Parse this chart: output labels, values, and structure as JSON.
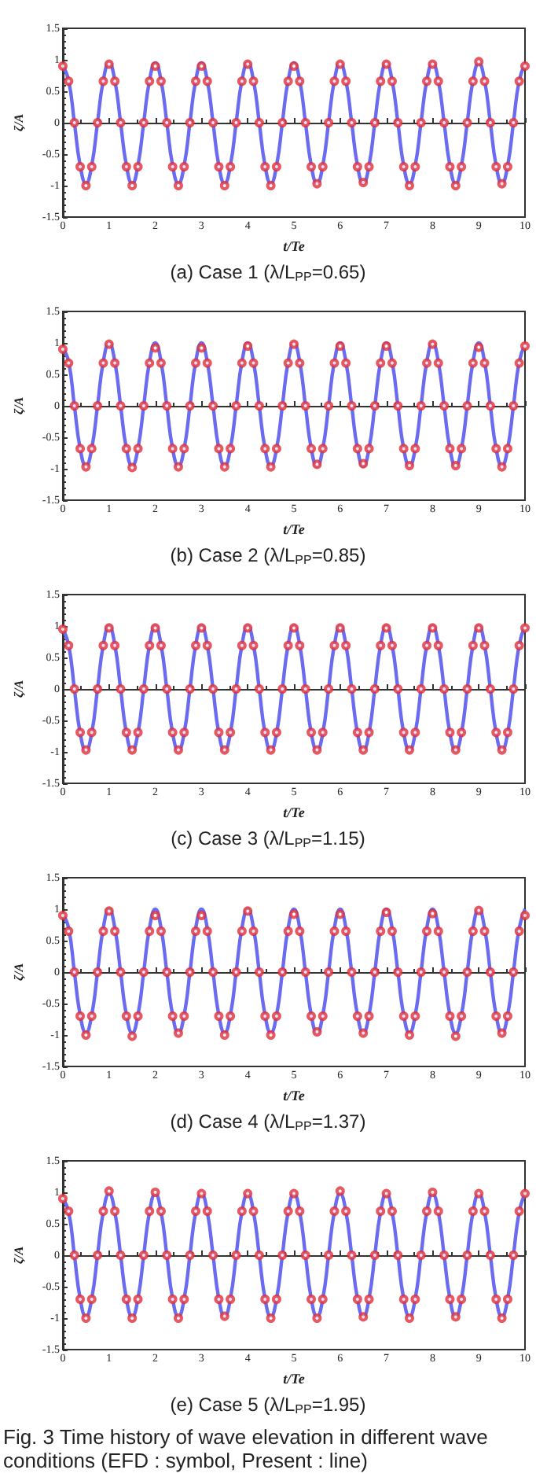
{
  "chart_data": [
    {
      "type": "line",
      "title": "(a) Case 1 (λ/L$_{PP}$=0.65)",
      "xlabel": "t/Te",
      "ylabel": "ζ/A",
      "xlim": [
        0,
        10
      ],
      "ylim": [
        -1.5,
        1.5
      ],
      "xticks": [
        0,
        1,
        2,
        3,
        4,
        5,
        6,
        7,
        8,
        9,
        10
      ],
      "yticks": [
        -1.5,
        -1,
        -0.5,
        0,
        0.5,
        1,
        1.5
      ],
      "x": [
        0,
        0.125,
        0.25,
        0.375,
        0.5,
        0.625,
        0.75,
        0.875,
        1,
        1.125,
        1.25,
        1.375,
        1.5,
        1.625,
        1.75,
        1.875,
        2,
        2.125,
        2.25,
        2.375,
        2.5,
        2.625,
        2.75,
        2.875,
        3,
        3.125,
        3.25,
        3.375,
        3.5,
        3.625,
        3.75,
        3.875,
        4,
        4.125,
        4.25,
        4.375,
        4.5,
        4.625,
        4.75,
        4.875,
        5,
        5.125,
        5.25,
        5.375,
        5.5,
        5.625,
        5.75,
        5.875,
        6,
        6.125,
        6.25,
        6.375,
        6.5,
        6.625,
        6.75,
        6.875,
        7,
        7.125,
        7.25,
        7.375,
        7.5,
        7.625,
        7.75,
        7.875,
        8,
        8.125,
        8.25,
        8.375,
        8.5,
        8.625,
        8.75,
        8.875,
        9,
        9.125,
        9.25,
        9.375,
        9.5,
        9.625,
        9.75,
        9.875,
        10
      ],
      "series": [
        {
          "color": "#6b6bf0",
          "marker": "none",
          "values": [
            0.9,
            0.67,
            0,
            -0.68,
            -0.97,
            -0.68,
            0,
            0.67,
            0.95,
            0.67,
            0,
            -0.68,
            -0.97,
            -0.68,
            0,
            0.67,
            0.95,
            0.67,
            0,
            -0.68,
            -0.97,
            -0.68,
            0,
            0.67,
            0.95,
            0.67,
            0,
            -0.68,
            -0.97,
            -0.68,
            0,
            0.67,
            0.95,
            0.67,
            0,
            -0.68,
            -0.97,
            -0.68,
            0,
            0.67,
            0.95,
            0.67,
            0,
            -0.68,
            -0.97,
            -0.68,
            0,
            0.67,
            0.95,
            0.67,
            0,
            -0.68,
            -0.97,
            -0.68,
            0,
            0.67,
            0.95,
            0.67,
            0,
            -0.68,
            -0.97,
            -0.68,
            0,
            0.67,
            0.95,
            0.67,
            0,
            -0.68,
            -0.97,
            -0.68,
            0,
            0.67,
            0.95,
            0.67,
            0,
            -0.68,
            -0.97,
            -0.68,
            0,
            0.67,
            0.93
          ]
        },
        {
          "type": "scatter",
          "color": "#e0303a",
          "marker": "circle",
          "values": [
            0.9,
            0.66,
            0,
            -0.7,
            -1,
            -0.7,
            0,
            0.66,
            0.93,
            0.66,
            0,
            -0.7,
            -1,
            -0.7,
            0,
            0.66,
            0.9,
            0.66,
            0,
            -0.7,
            -1,
            -0.7,
            0,
            0.66,
            0.9,
            0.66,
            0,
            -0.7,
            -1,
            -0.7,
            0,
            0.66,
            0.93,
            0.66,
            0,
            -0.7,
            -1,
            -0.7,
            0,
            0.66,
            0.9,
            0.66,
            0,
            -0.7,
            -0.97,
            -0.7,
            0,
            0.66,
            0.93,
            0.66,
            0,
            -0.7,
            -0.95,
            -0.7,
            0,
            0.66,
            0.93,
            0.66,
            0,
            -0.7,
            -1,
            -0.7,
            0,
            0.66,
            0.93,
            0.66,
            0,
            -0.7,
            -1,
            -0.7,
            0,
            0.66,
            0.97,
            0.66,
            0,
            -0.7,
            -0.97,
            -0.7,
            0,
            0.66,
            0.9
          ]
        }
      ]
    },
    {
      "type": "line",
      "title": "(b) Case 2 (λ/L$_{PP}$=0.85)",
      "xlabel": "t/Te",
      "ylabel": "ζ/A",
      "xlim": [
        0,
        10
      ],
      "ylim": [
        -1.5,
        1.5
      ],
      "xticks": [
        0,
        1,
        2,
        3,
        4,
        5,
        6,
        7,
        8,
        9,
        10
      ],
      "yticks": [
        -1.5,
        -1,
        -0.5,
        0,
        0.5,
        1,
        1.5
      ],
      "x": [
        0,
        0.125,
        0.25,
        0.375,
        0.5,
        0.625,
        0.75,
        0.875,
        1,
        1.125,
        1.25,
        1.375,
        1.5,
        1.625,
        1.75,
        1.875,
        2,
        2.125,
        2.25,
        2.375,
        2.5,
        2.625,
        2.75,
        2.875,
        3,
        3.125,
        3.25,
        3.375,
        3.5,
        3.625,
        3.75,
        3.875,
        4,
        4.125,
        4.25,
        4.375,
        4.5,
        4.625,
        4.75,
        4.875,
        5,
        5.125,
        5.25,
        5.375,
        5.5,
        5.625,
        5.75,
        5.875,
        6,
        6.125,
        6.25,
        6.375,
        6.5,
        6.625,
        6.75,
        6.875,
        7,
        7.125,
        7.25,
        7.375,
        7.5,
        7.625,
        7.75,
        7.875,
        8,
        8.125,
        8.25,
        8.375,
        8.5,
        8.625,
        8.75,
        8.875,
        9,
        9.125,
        9.25,
        9.375,
        9.5,
        9.625,
        9.75,
        9.875,
        10
      ],
      "series": [
        {
          "color": "#6b6bf0",
          "marker": "none",
          "values": [
            0.92,
            0.7,
            0,
            -0.68,
            -0.96,
            -0.68,
            0,
            0.7,
            1,
            0.7,
            0,
            -0.68,
            -0.96,
            -0.68,
            0,
            0.7,
            1,
            0.7,
            0,
            -0.68,
            -0.96,
            -0.68,
            0,
            0.7,
            1,
            0.7,
            0,
            -0.68,
            -0.96,
            -0.68,
            0,
            0.7,
            1,
            0.7,
            0,
            -0.68,
            -0.96,
            -0.68,
            0,
            0.7,
            1,
            0.7,
            0,
            -0.68,
            -0.96,
            -0.68,
            0,
            0.7,
            1,
            0.7,
            0,
            -0.68,
            -0.96,
            -0.68,
            0,
            0.7,
            1,
            0.7,
            0,
            -0.68,
            -0.96,
            -0.68,
            0,
            0.7,
            1,
            0.7,
            0,
            -0.68,
            -0.96,
            -0.68,
            0,
            0.7,
            1,
            0.7,
            0,
            -0.68,
            -0.96,
            -0.68,
            0,
            0.7,
            0.98
          ]
        },
        {
          "type": "scatter",
          "color": "#e0303a",
          "marker": "circle",
          "values": [
            0.9,
            0.68,
            0,
            -0.68,
            -0.97,
            -0.68,
            0,
            0.68,
            0.98,
            0.68,
            0,
            -0.68,
            -0.98,
            -0.68,
            0,
            0.68,
            0.92,
            0.68,
            0,
            -0.68,
            -0.97,
            -0.68,
            0,
            0.68,
            0.92,
            0.68,
            0,
            -0.68,
            -0.97,
            -0.68,
            0,
            0.68,
            0.95,
            0.68,
            0,
            -0.68,
            -0.97,
            -0.68,
            0,
            0.68,
            0.98,
            0.68,
            0,
            -0.68,
            -0.93,
            -0.68,
            0,
            0.68,
            0.95,
            0.68,
            0,
            -0.68,
            -0.92,
            -0.68,
            0,
            0.68,
            0.95,
            0.68,
            0,
            -0.68,
            -0.95,
            -0.68,
            0,
            0.68,
            0.98,
            0.68,
            0,
            -0.68,
            -0.95,
            -0.68,
            0,
            0.68,
            0.93,
            0.68,
            0,
            -0.68,
            -0.97,
            -0.68,
            0,
            0.68,
            0.95
          ]
        }
      ]
    },
    {
      "type": "line",
      "title": "(c) Case 3 (λ/L$_{PP}$=1.15)",
      "xlabel": "t/Te",
      "ylabel": "ζ/A",
      "xlim": [
        0,
        10
      ],
      "ylim": [
        -1.5,
        1.5
      ],
      "xticks": [
        0,
        1,
        2,
        3,
        4,
        5,
        6,
        7,
        8,
        9,
        10
      ],
      "yticks": [
        -1.5,
        -1,
        -0.5,
        0,
        0.5,
        1,
        1.5
      ],
      "x": [
        0,
        0.125,
        0.25,
        0.375,
        0.5,
        0.625,
        0.75,
        0.875,
        1,
        1.125,
        1.25,
        1.375,
        1.5,
        1.625,
        1.75,
        1.875,
        2,
        2.125,
        2.25,
        2.375,
        2.5,
        2.625,
        2.75,
        2.875,
        3,
        3.125,
        3.25,
        3.375,
        3.5,
        3.625,
        3.75,
        3.875,
        4,
        4.125,
        4.25,
        4.375,
        4.5,
        4.625,
        4.75,
        4.875,
        5,
        5.125,
        5.25,
        5.375,
        5.5,
        5.625,
        5.75,
        5.875,
        6,
        6.125,
        6.25,
        6.375,
        6.5,
        6.625,
        6.75,
        6.875,
        7,
        7.125,
        7.25,
        7.375,
        7.5,
        7.625,
        7.75,
        7.875,
        8,
        8.125,
        8.25,
        8.375,
        8.5,
        8.625,
        8.75,
        8.875,
        9,
        9.125,
        9.25,
        9.375,
        9.5,
        9.625,
        9.75,
        9.875,
        10
      ],
      "series": [
        {
          "color": "#6b6bf0",
          "marker": "none",
          "values": [
            0.95,
            0.7,
            0,
            -0.7,
            -0.98,
            -0.7,
            0,
            0.7,
            1,
            0.7,
            0,
            -0.7,
            -0.98,
            -0.7,
            0,
            0.7,
            1,
            0.7,
            0,
            -0.7,
            -0.98,
            -0.7,
            0,
            0.7,
            1,
            0.7,
            0,
            -0.7,
            -0.98,
            -0.7,
            0,
            0.7,
            1,
            0.7,
            0,
            -0.7,
            -0.98,
            -0.7,
            0,
            0.7,
            1,
            0.7,
            0,
            -0.7,
            -0.98,
            -0.7,
            0,
            0.7,
            1,
            0.7,
            0,
            -0.7,
            -0.98,
            -0.7,
            0,
            0.7,
            1,
            0.7,
            0,
            -0.7,
            -0.98,
            -0.7,
            0,
            0.7,
            1,
            0.7,
            0,
            -0.7,
            -0.98,
            -0.7,
            0,
            0.7,
            1,
            0.7,
            0,
            -0.7,
            -0.98,
            -0.7,
            0,
            0.7,
            1
          ]
        },
        {
          "type": "scatter",
          "color": "#e0303a",
          "marker": "circle",
          "values": [
            0.95,
            0.69,
            0,
            -0.69,
            -0.97,
            -0.69,
            0,
            0.69,
            0.97,
            0.69,
            0,
            -0.69,
            -0.97,
            -0.69,
            0,
            0.69,
            0.97,
            0.69,
            0,
            -0.69,
            -0.97,
            -0.69,
            0,
            0.69,
            0.97,
            0.69,
            0,
            -0.69,
            -0.97,
            -0.69,
            0,
            0.69,
            0.97,
            0.69,
            0,
            -0.69,
            -0.97,
            -0.69,
            0,
            0.69,
            0.97,
            0.69,
            0,
            -0.69,
            -0.97,
            -0.69,
            0,
            0.69,
            0.97,
            0.69,
            0,
            -0.69,
            -0.97,
            -0.69,
            0,
            0.69,
            0.97,
            0.69,
            0,
            -0.69,
            -0.97,
            -0.69,
            0,
            0.69,
            0.97,
            0.69,
            0,
            -0.69,
            -0.97,
            -0.69,
            0,
            0.69,
            0.97,
            0.69,
            0,
            -0.69,
            -0.97,
            -0.69,
            0,
            0.69,
            0.97
          ]
        }
      ]
    },
    {
      "type": "line",
      "title": "(d) Case 4 (λ/L$_{PP}$=1.37)",
      "xlabel": "t/Te",
      "ylabel": "ζ/A",
      "xlim": [
        0,
        10
      ],
      "ylim": [
        -1.5,
        1.5
      ],
      "xticks": [
        0,
        1,
        2,
        3,
        4,
        5,
        6,
        7,
        8,
        9,
        10
      ],
      "yticks": [
        -1.5,
        -1,
        -0.5,
        0,
        0.5,
        1,
        1.5
      ],
      "x": [
        0,
        0.125,
        0.25,
        0.375,
        0.5,
        0.625,
        0.75,
        0.875,
        1,
        1.125,
        1.25,
        1.375,
        1.5,
        1.625,
        1.75,
        1.875,
        2,
        2.125,
        2.25,
        2.375,
        2.5,
        2.625,
        2.75,
        2.875,
        3,
        3.125,
        3.25,
        3.375,
        3.5,
        3.625,
        3.75,
        3.875,
        4,
        4.125,
        4.25,
        4.375,
        4.5,
        4.625,
        4.75,
        4.875,
        5,
        5.125,
        5.25,
        5.375,
        5.5,
        5.625,
        5.75,
        5.875,
        6,
        6.125,
        6.25,
        6.375,
        6.5,
        6.625,
        6.75,
        6.875,
        7,
        7.125,
        7.25,
        7.375,
        7.5,
        7.625,
        7.75,
        7.875,
        8,
        8.125,
        8.25,
        8.375,
        8.5,
        8.625,
        8.75,
        8.875,
        9,
        9.125,
        9.25,
        9.375,
        9.5,
        9.625,
        9.75,
        9.875,
        10
      ],
      "series": [
        {
          "color": "#6b6bf0",
          "marker": "none",
          "values": [
            0.92,
            0.7,
            0,
            -0.68,
            -0.97,
            -0.68,
            0,
            0.7,
            1,
            0.7,
            0,
            -0.68,
            -0.97,
            -0.68,
            0,
            0.7,
            1,
            0.7,
            0,
            -0.68,
            -0.97,
            -0.68,
            0,
            0.7,
            1,
            0.7,
            0,
            -0.68,
            -0.97,
            -0.68,
            0,
            0.7,
            1,
            0.7,
            0,
            -0.68,
            -0.97,
            -0.68,
            0,
            0.7,
            1,
            0.7,
            0,
            -0.68,
            -0.97,
            -0.68,
            0,
            0.7,
            1,
            0.7,
            0,
            -0.68,
            -0.97,
            -0.68,
            0,
            0.7,
            1,
            0.7,
            0,
            -0.68,
            -0.97,
            -0.68,
            0,
            0.7,
            1,
            0.7,
            0,
            -0.68,
            -0.97,
            -0.68,
            0,
            0.7,
            1,
            0.7,
            0,
            -0.68,
            -0.97,
            -0.68,
            0,
            0.7,
            1
          ]
        },
        {
          "type": "scatter",
          "color": "#e0303a",
          "marker": "circle",
          "values": [
            0.9,
            0.65,
            0,
            -0.7,
            -1,
            -0.7,
            0,
            0.65,
            0.97,
            0.65,
            0,
            -0.7,
            -1.02,
            -0.7,
            0,
            0.65,
            0.9,
            0.65,
            0,
            -0.7,
            -0.97,
            -0.7,
            0,
            0.65,
            0.9,
            0.65,
            0,
            -0.7,
            -1,
            -0.7,
            0,
            0.65,
            0.97,
            0.65,
            0,
            -0.7,
            -1,
            -0.7,
            0,
            0.65,
            0.92,
            0.65,
            0,
            -0.7,
            -0.95,
            -0.7,
            0,
            0.65,
            0.92,
            0.65,
            0,
            -0.7,
            -0.97,
            -0.7,
            0,
            0.65,
            0.95,
            0.65,
            0,
            -0.7,
            -1,
            -0.7,
            0,
            0.65,
            0.93,
            0.65,
            0,
            -0.7,
            -1.02,
            -0.7,
            0,
            0.65,
            0.98,
            0.65,
            0,
            -0.7,
            -0.97,
            -0.7,
            0,
            0.65,
            0.9
          ]
        }
      ]
    },
    {
      "type": "line",
      "title": "(e) Case 5 (λ/L$_{PP}$=1.95)",
      "xlabel": "t/Te",
      "ylabel": "ζ/A",
      "xlim": [
        0,
        10
      ],
      "ylim": [
        -1.5,
        1.5
      ],
      "xticks": [
        0,
        1,
        2,
        3,
        4,
        5,
        6,
        7,
        8,
        9,
        10
      ],
      "yticks": [
        -1.5,
        -1,
        -0.5,
        0,
        0.5,
        1,
        1.5
      ],
      "annotations": [
        "Fig. 3 Time history of wave elevation in different wave conditions (EFD : symbol, Present : line)"
      ],
      "x": [
        0,
        0.125,
        0.25,
        0.375,
        0.5,
        0.625,
        0.75,
        0.875,
        1,
        1.125,
        1.25,
        1.375,
        1.5,
        1.625,
        1.75,
        1.875,
        2,
        2.125,
        2.25,
        2.375,
        2.5,
        2.625,
        2.75,
        2.875,
        3,
        3.125,
        3.25,
        3.375,
        3.5,
        3.625,
        3.75,
        3.875,
        4,
        4.125,
        4.25,
        4.375,
        4.5,
        4.625,
        4.75,
        4.875,
        5,
        5.125,
        5.25,
        5.375,
        5.5,
        5.625,
        5.75,
        5.875,
        6,
        6.125,
        6.25,
        6.375,
        6.5,
        6.625,
        6.75,
        6.875,
        7,
        7.125,
        7.25,
        7.375,
        7.5,
        7.625,
        7.75,
        7.875,
        8,
        8.125,
        8.25,
        8.375,
        8.5,
        8.625,
        8.75,
        8.875,
        9,
        9.125,
        9.25,
        9.375,
        9.5,
        9.625,
        9.75,
        9.875,
        10
      ],
      "series": [
        {
          "color": "#6b6bf0",
          "marker": "none",
          "values": [
            0.9,
            0.69,
            0,
            -0.69,
            -0.98,
            -0.69,
            0,
            0.69,
            0.98,
            0.69,
            0,
            -0.69,
            -0.98,
            -0.69,
            0,
            0.69,
            0.98,
            0.69,
            0,
            -0.69,
            -0.98,
            -0.69,
            0,
            0.69,
            0.98,
            0.69,
            0,
            -0.69,
            -0.98,
            -0.69,
            0,
            0.69,
            0.98,
            0.69,
            0,
            -0.69,
            -0.98,
            -0.69,
            0,
            0.69,
            0.98,
            0.69,
            0,
            -0.69,
            -0.98,
            -0.69,
            0,
            0.69,
            0.98,
            0.69,
            0,
            -0.69,
            -0.98,
            -0.69,
            0,
            0.69,
            0.98,
            0.69,
            0,
            -0.69,
            -0.98,
            -0.69,
            0,
            0.69,
            0.98,
            0.69,
            0,
            -0.69,
            -0.98,
            -0.69,
            0,
            0.69,
            0.98,
            0.69,
            0,
            -0.69,
            -0.98,
            -0.69,
            0,
            0.69,
            0.98
          ]
        },
        {
          "type": "scatter",
          "color": "#e0303a",
          "marker": "circle",
          "values": [
            0.9,
            0.7,
            0,
            -0.7,
            -1,
            -0.7,
            0,
            0.7,
            1.02,
            0.7,
            0,
            -0.7,
            -1,
            -0.7,
            0,
            0.7,
            1,
            0.7,
            0,
            -0.7,
            -1,
            -0.7,
            0,
            0.7,
            0.98,
            0.7,
            0,
            -0.7,
            -0.97,
            -0.7,
            0,
            0.7,
            0.98,
            0.7,
            0,
            -0.7,
            -1,
            -0.7,
            0,
            0.7,
            0.98,
            0.7,
            0,
            -0.7,
            -1,
            -0.7,
            0,
            0.7,
            1.02,
            0.7,
            0,
            -0.7,
            -0.98,
            -0.7,
            0,
            0.7,
            0.98,
            0.7,
            0,
            -0.7,
            -1,
            -0.7,
            0,
            0.7,
            1,
            0.7,
            0,
            -0.7,
            -0.98,
            -0.7,
            0,
            0.7,
            0.98,
            0.7,
            0,
            -0.7,
            -1,
            -0.7,
            0,
            0.7,
            0.98
          ]
        }
      ]
    }
  ]
}
